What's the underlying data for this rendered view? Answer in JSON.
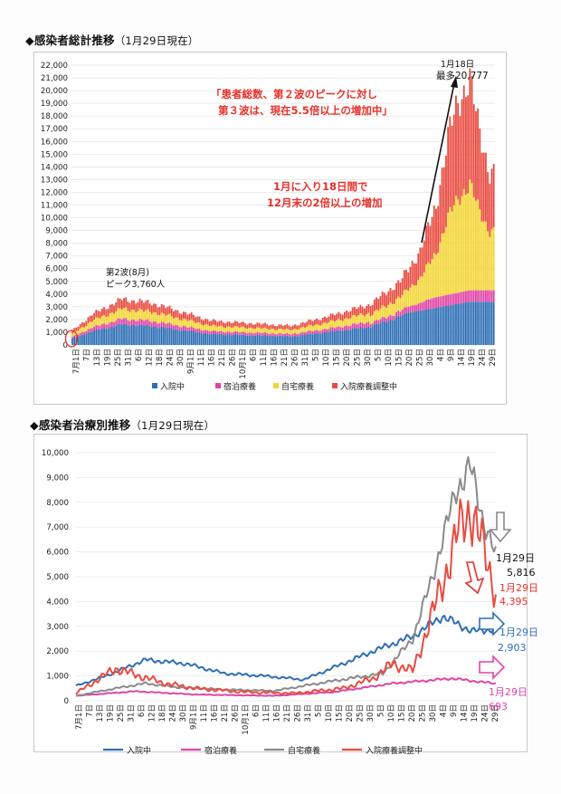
{
  "section1": {
    "marker": "◆",
    "title": "感染者総計推移",
    "subtitle": "（1月29日現在）"
  },
  "section2": {
    "marker": "◆",
    "title": "感染者治療別推移",
    "subtitle": "（1月29日現在）"
  },
  "colors": {
    "hospitalized": "#2e6fb5",
    "hotel": "#e044a8",
    "home": "#f3d535",
    "adjusting": "#e94b40",
    "home_line": "#8a8a8a",
    "annotation": "#e8302a",
    "arrow_gray": "#888888",
    "arrow_blue": "#2e6fb5",
    "arrow_pink": "#e044a8"
  },
  "chart_data": [
    {
      "type": "bar",
      "stacked": true,
      "title": "",
      "ylim": [
        0,
        22000
      ],
      "yticks": [
        "22,000",
        "21,000",
        "20,000",
        "19,000",
        "18,000",
        "17,000",
        "16,000",
        "15,000",
        "14,000",
        "13,000",
        "12,000",
        "11,000",
        "10,000",
        "9,000",
        "8,000",
        "7,000",
        "6,000",
        "5,000",
        "4,000",
        "3,000",
        "2,000",
        "1,000",
        "0"
      ],
      "x_labels": [
        "7月1日",
        "7日",
        "13日",
        "19日",
        "25日",
        "31日",
        "6日",
        "12日",
        "18日",
        "24日",
        "30日",
        "9月1日",
        "11日",
        "16日",
        "21日",
        "26日",
        "10月1日",
        "6日",
        "11日",
        "16日",
        "21日",
        "26日",
        "31日",
        "5日",
        "10日",
        "15日",
        "20日",
        "25日",
        "30日",
        "5日",
        "10日",
        "15日",
        "20日",
        "25日",
        "30日",
        "4日",
        "9日",
        "14日",
        "19日",
        "24日",
        "29日"
      ],
      "legend": [
        {
          "label": "入院中",
          "color": "#2e6fb5"
        },
        {
          "label": "宿泊療養",
          "color": "#e044a8"
        },
        {
          "label": "自宅療養",
          "color": "#f3d535"
        },
        {
          "label": "入院療養調整中",
          "color": "#e94b40"
        }
      ],
      "legend_position": "bottom",
      "series_anchor_totals": [
        [
          0,
          1100
        ],
        [
          10,
          2400
        ],
        [
          25,
          3600
        ],
        [
          40,
          3300
        ],
        [
          55,
          2600
        ],
        [
          70,
          1900
        ],
        [
          90,
          1700
        ],
        [
          110,
          1500
        ],
        [
          130,
          2300
        ],
        [
          150,
          3200
        ],
        [
          165,
          5000
        ],
        [
          175,
          7400
        ],
        [
          183,
          11000
        ],
        [
          190,
          17000
        ],
        [
          194,
          19200
        ],
        [
          200,
          20777
        ],
        [
          204,
          17500
        ],
        [
          210,
          13500
        ]
      ],
      "annotations": {
        "peak2_line1": "第2波(8月)",
        "peak2_line2": "ピーク3,760人",
        "peak_date": "1月18日",
        "peak_value": "最多20,777",
        "red_note_line1": "「患者総数、第２波のピークに対し",
        "red_note_line2": "第３波は、現在5.5倍以上の増加中」",
        "red_note2_line1": "1月に入り18日間で",
        "red_note2_line2": "12月末の2倍以上の増加"
      }
    },
    {
      "type": "line",
      "title": "",
      "ylim": [
        0,
        10000
      ],
      "yticks": [
        "10,000",
        "9,000",
        "8,000",
        "7,000",
        "6,000",
        "5,000",
        "4,000",
        "3,000",
        "2,000",
        "1,000",
        "0"
      ],
      "x_labels": [
        "7月1日",
        "7日",
        "13日",
        "19日",
        "25日",
        "31日",
        "6日",
        "12日",
        "18日",
        "24日",
        "30日",
        "9月1日",
        "11日",
        "16日",
        "21日",
        "26日",
        "10月1日",
        "6日",
        "11日",
        "16日",
        "21日",
        "26日",
        "31日",
        "5日",
        "10日",
        "15日",
        "20日",
        "25日",
        "30日",
        "5日",
        "10日",
        "15日",
        "20日",
        "25日",
        "30日",
        "4日",
        "9日",
        "14日",
        "19日",
        "24日",
        "29日"
      ],
      "series": [
        {
          "name": "入院中",
          "color": "#2e6fb5",
          "anchors": [
            [
              0,
              600
            ],
            [
              15,
              1000
            ],
            [
              35,
              1650
            ],
            [
              55,
              1500
            ],
            [
              75,
              1100
            ],
            [
              95,
              1000
            ],
            [
              115,
              850
            ],
            [
              135,
              1500
            ],
            [
              150,
              2000
            ],
            [
              170,
              2600
            ],
            [
              185,
              3400
            ],
            [
              200,
              2800
            ],
            [
              212,
              2903
            ]
          ]
        },
        {
          "name": "宿泊療養",
          "color": "#e044a8",
          "anchors": [
            [
              0,
              200
            ],
            [
              30,
              380
            ],
            [
              60,
              250
            ],
            [
              100,
              200
            ],
            [
              130,
              350
            ],
            [
              160,
              700
            ],
            [
              190,
              900
            ],
            [
              200,
              800
            ],
            [
              212,
              693
            ]
          ]
        },
        {
          "name": "自宅療養",
          "color": "#8a8a8a",
          "anchors": [
            [
              0,
              200
            ],
            [
              20,
              500
            ],
            [
              35,
              700
            ],
            [
              50,
              550
            ],
            [
              75,
              450
            ],
            [
              100,
              400
            ],
            [
              130,
              800
            ],
            [
              155,
              1100
            ],
            [
              170,
              2500
            ],
            [
              180,
              5000
            ],
            [
              192,
              8500
            ],
            [
              199,
              9450
            ],
            [
              205,
              7500
            ],
            [
              212,
              5816
            ]
          ]
        },
        {
          "name": "入院療養調整中",
          "color": "#e94b40",
          "anchors": [
            [
              0,
              300
            ],
            [
              10,
              800
            ],
            [
              20,
              1300
            ],
            [
              30,
              1050
            ],
            [
              45,
              700
            ],
            [
              60,
              500
            ],
            [
              85,
              350
            ],
            [
              110,
              300
            ],
            [
              135,
              500
            ],
            [
              150,
              900
            ],
            [
              160,
              1500
            ],
            [
              170,
              1200
            ],
            [
              180,
              3500
            ],
            [
              188,
              5500
            ],
            [
              193,
              6800
            ],
            [
              199,
              7800
            ],
            [
              205,
              6300
            ],
            [
              212,
              4395
            ]
          ]
        }
      ],
      "end_labels": {
        "home_date": "1月29日",
        "home_value": "5,816",
        "adjusting_date": "1月29日",
        "adjusting_value": "4,395",
        "hospitalized_date": "1月29日",
        "hospitalized_value": "2,903",
        "hotel_date": "1月29日",
        "hotel_value": "693"
      },
      "legend_position": "bottom"
    }
  ]
}
